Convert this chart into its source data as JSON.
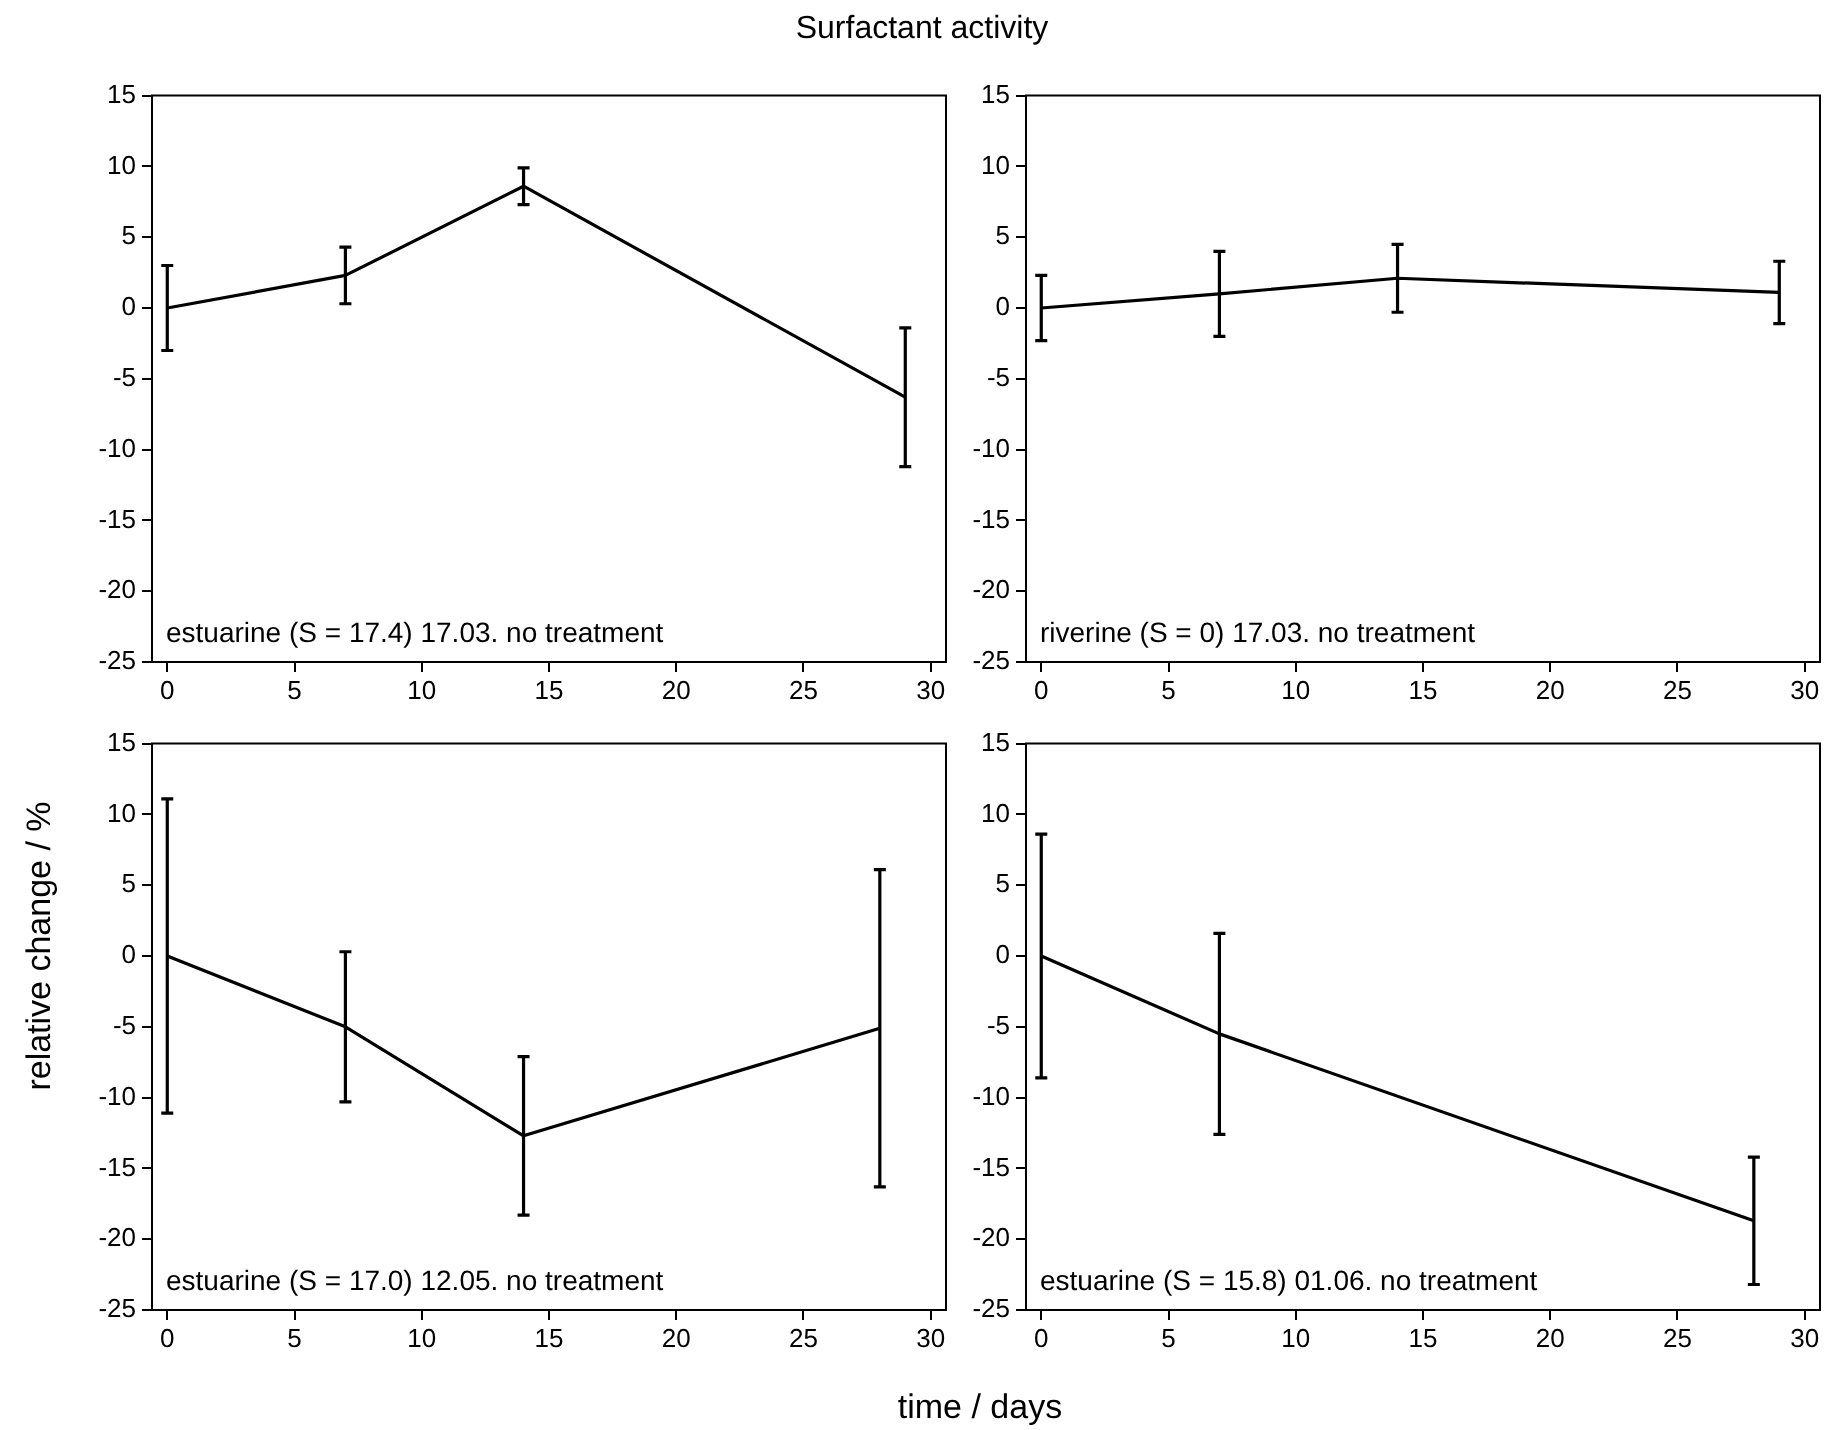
{
  "chart_data": [
    {
      "type": "line",
      "title": "Surfactant activity",
      "x": [
        0,
        7,
        14,
        29
      ],
      "values": [
        0,
        2.3,
        8.6,
        -6.3
      ],
      "errors": [
        3,
        2,
        1.3,
        4.9
      ],
      "color": "#000000",
      "xlim": [
        -0.6,
        30.6
      ],
      "xticks": [
        0,
        5,
        10,
        15,
        20,
        25,
        30
      ],
      "ylim": [
        -25,
        15
      ],
      "yticks": [
        -25,
        -20,
        -15,
        -10,
        -5,
        0,
        5,
        10,
        15
      ],
      "annotations": [
        "estuarine (S = 17.4) 17.03. no treatment"
      ],
      "marker": "none",
      "grid": false,
      "legend": false
    },
    {
      "type": "line",
      "x": [
        0,
        7,
        14,
        29
      ],
      "values": [
        0,
        1,
        2.1,
        1.1
      ],
      "errors": [
        2.3,
        3,
        2.4,
        2.2
      ],
      "color": "#000000",
      "xlim": [
        -0.6,
        30.6
      ],
      "xticks": [
        0,
        5,
        10,
        15,
        20,
        25,
        30
      ],
      "ylim": [
        -25,
        15
      ],
      "yticks": [
        -25,
        -20,
        -15,
        -10,
        -5,
        0,
        5,
        10,
        15
      ],
      "annotations": [
        "riverine (S = 0) 17.03. no treatment"
      ],
      "marker": "none",
      "grid": false,
      "legend": false
    },
    {
      "type": "line",
      "ylabel": "relative change / %",
      "xlabel": "time / days",
      "x": [
        0,
        7,
        14,
        28
      ],
      "values": [
        0,
        -5,
        -12.7,
        -5.1
      ],
      "errors": [
        11.1,
        5.3,
        5.6,
        11.2
      ],
      "color": "#000000",
      "xlim": [
        -0.6,
        30.6
      ],
      "xticks": [
        0,
        5,
        10,
        15,
        20,
        25,
        30
      ],
      "ylim": [
        -25,
        15
      ],
      "yticks": [
        -25,
        -20,
        -15,
        -10,
        -5,
        0,
        5,
        10,
        15
      ],
      "annotations": [
        "estuarine (S = 17.0) 12.05. no treatment"
      ],
      "marker": "none",
      "grid": false,
      "legend": false
    },
    {
      "type": "line",
      "x": [
        0,
        7,
        28
      ],
      "values": [
        0,
        -5.5,
        -18.7
      ],
      "errors": [
        8.6,
        7.1,
        4.5
      ],
      "color": "#000000",
      "xlim": [
        -0.6,
        30.6
      ],
      "xticks": [
        0,
        5,
        10,
        15,
        20,
        25,
        30
      ],
      "ylim": [
        -25,
        15
      ],
      "yticks": [
        -25,
        -20,
        -15,
        -10,
        -5,
        0,
        5,
        10,
        15
      ],
      "annotations": [
        "estuarine (S = 15.8) 01.06. no treatment"
      ],
      "marker": "none",
      "grid": false,
      "legend": false
    }
  ]
}
